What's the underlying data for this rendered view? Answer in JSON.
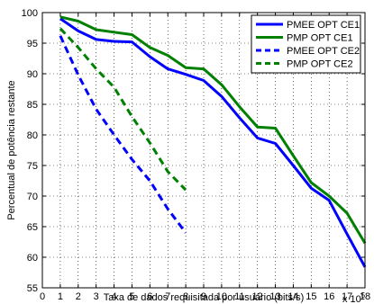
{
  "chart_data": {
    "type": "line",
    "xlabel": "Taxa de dados requisitada por usuário (bits/s)",
    "ylabel": "Percentual de potência restante",
    "x_multiplier_label": "x 10",
    "x_multiplier_exponent": "5",
    "xlim": [
      0,
      18
    ],
    "ylim": [
      55,
      100
    ],
    "x_ticks": [
      "0",
      "1",
      "2",
      "3",
      "4",
      "5",
      "6",
      "7",
      "8",
      "9",
      "10",
      "11",
      "12",
      "13",
      "14",
      "15",
      "16",
      "17",
      "18"
    ],
    "y_ticks": [
      "55",
      "60",
      "65",
      "70",
      "75",
      "80",
      "85",
      "90",
      "95",
      "100"
    ],
    "grid": true,
    "legend_position": "top-right",
    "series": [
      {
        "name": "PMEE OPT CE1",
        "color": "#0000ff",
        "dash": "solid",
        "x": [
          1,
          2,
          3,
          4,
          5,
          6,
          7,
          8,
          9,
          10,
          11,
          12,
          13,
          14,
          15,
          16,
          17,
          18
        ],
        "values": [
          99.0,
          97.0,
          95.6,
          95.3,
          95.2,
          92.8,
          90.8,
          89.9,
          88.9,
          86.3,
          82.8,
          79.5,
          78.6,
          75.0,
          71.3,
          69.3,
          63.8,
          58.4
        ]
      },
      {
        "name": "PMP OPT CE1",
        "color": "#008000",
        "dash": "solid",
        "x": [
          1,
          2,
          3,
          4,
          5,
          6,
          7,
          8,
          9,
          10,
          11,
          12,
          13,
          14,
          15,
          16,
          17,
          18
        ],
        "values": [
          99.3,
          98.6,
          97.2,
          96.8,
          96.4,
          94.3,
          93.0,
          91.0,
          90.8,
          88.2,
          84.6,
          81.3,
          81.1,
          76.6,
          72.2,
          70.0,
          67.2,
          62.3
        ]
      },
      {
        "name": "PMEE OPT CE2",
        "color": "#0000ff",
        "dash": "dashed",
        "x": [
          1,
          2,
          3,
          4,
          5,
          6,
          7,
          8
        ],
        "values": [
          96.2,
          89.8,
          84.2,
          80.0,
          76.0,
          72.5,
          67.9,
          64.0
        ]
      },
      {
        "name": "PMP OPT CE2",
        "color": "#008000",
        "dash": "dashed",
        "x": [
          1,
          2,
          3,
          4,
          5,
          6,
          7,
          8
        ],
        "values": [
          97.4,
          94.3,
          90.8,
          87.8,
          83.0,
          78.7,
          74.0,
          71.0
        ]
      }
    ]
  }
}
